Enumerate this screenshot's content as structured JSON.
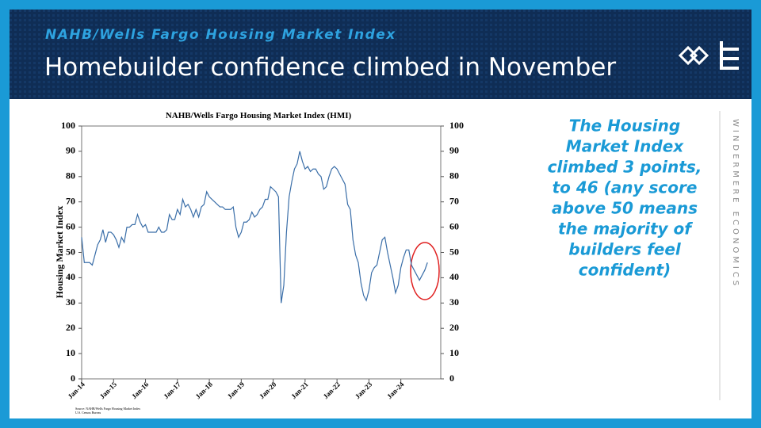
{
  "header": {
    "subtitle": "NAHB/Wells Fargo Housing Market Index",
    "title": "Homebuilder confidence climbed in November"
  },
  "callout": [
    "The Housing",
    "Market Index",
    "climbed 3 points,",
    "to 46 (any score",
    "above 50 means",
    "the majority of",
    "builders feel",
    "confident)"
  ],
  "brand": "WINDERMERE ECONOMICS",
  "chart_data": {
    "type": "line",
    "title": "NAHB/Wells Fargo Housing Market Index (HMI)",
    "y_label": "Housing Market Index",
    "source": [
      "Source: NAHB/Wells Fargo Housing Market Index",
      "U.S. Census Bureau"
    ],
    "categories": [
      "Jan-14",
      null,
      null,
      null,
      null,
      null,
      null,
      null,
      null,
      null,
      null,
      null,
      "Jan-15",
      null,
      null,
      null,
      null,
      null,
      null,
      null,
      null,
      null,
      null,
      null,
      "Jan-16",
      null,
      null,
      null,
      null,
      null,
      null,
      null,
      null,
      null,
      null,
      null,
      "Jan-17",
      null,
      null,
      null,
      null,
      null,
      null,
      null,
      null,
      null,
      null,
      null,
      "Jan-18",
      null,
      null,
      null,
      null,
      null,
      null,
      null,
      null,
      null,
      null,
      null,
      "Jan-19",
      null,
      null,
      null,
      null,
      null,
      null,
      null,
      null,
      null,
      null,
      null,
      "Jan-20",
      null,
      null,
      null,
      null,
      null,
      null,
      null,
      null,
      null,
      null,
      null,
      "Jan-21",
      null,
      null,
      null,
      null,
      null,
      null,
      null,
      null,
      null,
      null,
      null,
      "Jan-22",
      null,
      null,
      null,
      null,
      null,
      null,
      null,
      null,
      null,
      null,
      null,
      "Jan-23",
      null,
      null,
      null,
      null,
      null,
      null,
      null,
      null,
      null,
      null,
      null,
      "Jan-24",
      null,
      null,
      null,
      null,
      null,
      null,
      null,
      null,
      null,
      null
    ],
    "series": [
      {
        "name": "HMI",
        "color": "#3a6ea8",
        "values": [
          56,
          46,
          46,
          46,
          45,
          49,
          53,
          55,
          59,
          54,
          58,
          58,
          57,
          55,
          52,
          56,
          54,
          60,
          60,
          61,
          61,
          65,
          62,
          60,
          61,
          58,
          58,
          58,
          58,
          60,
          58,
          58,
          59,
          65,
          63,
          63,
          67,
          65,
          71,
          68,
          69,
          67,
          64,
          67,
          64,
          68,
          69,
          74,
          72,
          71,
          70,
          69,
          68,
          68,
          67,
          67,
          67,
          68,
          60,
          56,
          58,
          62,
          62,
          63,
          66,
          64,
          65,
          67,
          68,
          71,
          71,
          76,
          75,
          74,
          72,
          30,
          37,
          58,
          72,
          78,
          83,
          85,
          90,
          86,
          83,
          84,
          82,
          83,
          83,
          81,
          80,
          75,
          76,
          80,
          83,
          84,
          83,
          81,
          79,
          77,
          69,
          67,
          55,
          49,
          46,
          38,
          33,
          31,
          35,
          42,
          44,
          45,
          50,
          55,
          56,
          50,
          45,
          40,
          34,
          37,
          44,
          48,
          51,
          51,
          45,
          43,
          41,
          39,
          41,
          43,
          46
        ]
      }
    ],
    "ylim": [
      0,
      100
    ],
    "yticks": [
      0,
      10,
      20,
      30,
      40,
      50,
      60,
      70,
      80,
      90,
      100
    ],
    "y2lim": [
      0,
      100
    ],
    "y2ticks": [
      0,
      10,
      20,
      30,
      40,
      50,
      60,
      70,
      80,
      90,
      100
    ]
  }
}
